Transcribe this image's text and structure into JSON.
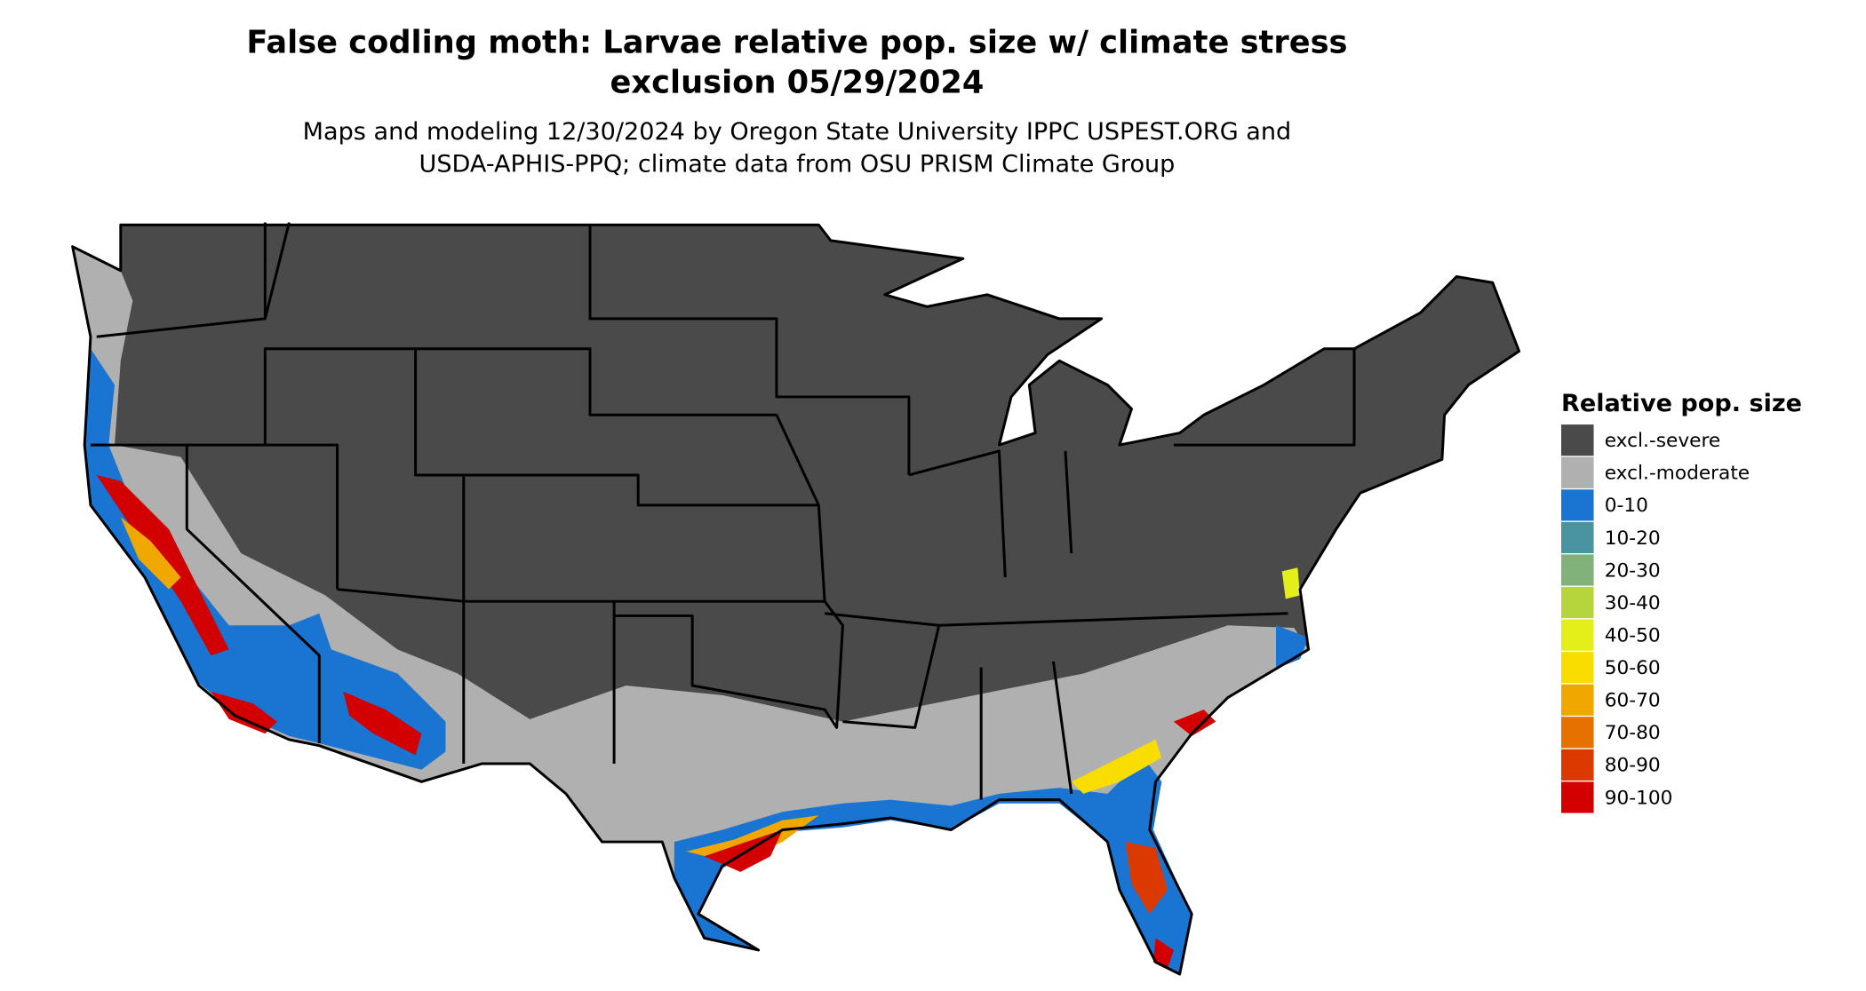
{
  "header": {
    "title": [
      "False codling moth: Larvae relative pop. size w/ climate stress",
      "exclusion 05/29/2024"
    ],
    "subtitle": [
      "Maps and modeling 12/30/2024 by Oregon State University IPPC USPEST.ORG and",
      "USDA-APHIS-PPQ; climate data from OSU PRISM Climate Group"
    ]
  },
  "legend": {
    "title": "Relative pop. size",
    "items": [
      {
        "label": "excl.-severe",
        "color": "#4a4a4a"
      },
      {
        "label": "excl.-moderate",
        "color": "#b0b0b0"
      },
      {
        "label": "0-10",
        "color": "#1a74d2"
      },
      {
        "label": "10-20",
        "color": "#4a93a0"
      },
      {
        "label": "20-30",
        "color": "#80b27a"
      },
      {
        "label": "30-40",
        "color": "#b6d43c"
      },
      {
        "label": "40-50",
        "color": "#e4ef1a"
      },
      {
        "label": "50-60",
        "color": "#f8dd00"
      },
      {
        "label": "60-70",
        "color": "#f0a800"
      },
      {
        "label": "70-80",
        "color": "#e67000"
      },
      {
        "label": "80-90",
        "color": "#da3a00"
      },
      {
        "label": "90-100",
        "color": "#d20000"
      }
    ]
  }
}
